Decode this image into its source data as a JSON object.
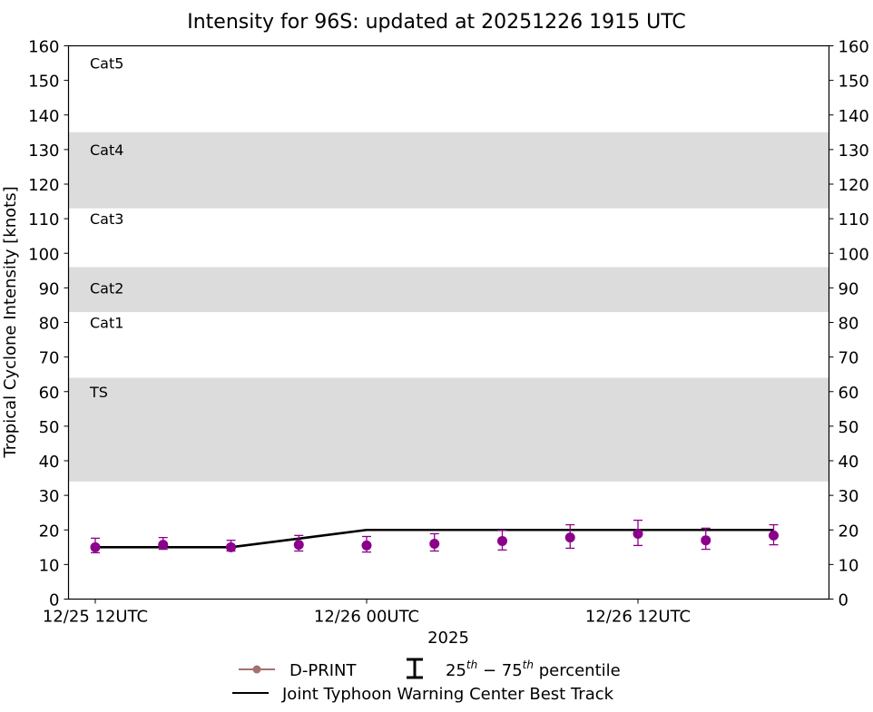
{
  "chart_data": {
    "type": "line",
    "title": "Intensity for 96S: updated at 20251226 1915 UTC",
    "xlabel": "2025",
    "ylabel": "Tropical Cyclone Intensity [knots]",
    "ylim": [
      0,
      160
    ],
    "yticks": [
      0,
      10,
      20,
      30,
      40,
      50,
      60,
      70,
      80,
      90,
      100,
      110,
      120,
      130,
      140,
      150,
      160
    ],
    "xticks": [
      {
        "label": "12/25 12UTC",
        "hour": 0
      },
      {
        "label": "12/26 00UTC",
        "hour": 12
      },
      {
        "label": "12/26 12UTC",
        "hour": 24
      }
    ],
    "xlim_hours": [
      -1.2,
      32.4
    ],
    "grid": false,
    "category_bands": [
      {
        "label": "TS",
        "min": 34,
        "max": 64,
        "shaded": true,
        "label_y": 60
      },
      {
        "label": "Cat1",
        "min": 64,
        "max": 83,
        "shaded": false,
        "label_y": 80
      },
      {
        "label": "Cat2",
        "min": 83,
        "max": 96,
        "shaded": true,
        "label_y": 90
      },
      {
        "label": "Cat3",
        "min": 96,
        "max": 113,
        "shaded": false,
        "label_y": 110
      },
      {
        "label": "Cat4",
        "min": 113,
        "max": 135,
        "shaded": true,
        "label_y": 130
      },
      {
        "label": "Cat5",
        "min": 135,
        "max": 160,
        "shaded": false,
        "label_y": 155
      }
    ],
    "series": [
      {
        "name": "D-PRINT",
        "color": "#8b008b",
        "legend_color": "#a57070",
        "hours": [
          0,
          3,
          6,
          9,
          12,
          15,
          18,
          21,
          24,
          27,
          30
        ],
        "values": [
          15,
          15.7,
          15,
          15.7,
          15.5,
          16,
          16.8,
          17.8,
          18.9,
          17,
          18.4
        ],
        "p25": [
          13.4,
          14.4,
          13.9,
          13.9,
          13.6,
          13.9,
          14.2,
          14.7,
          15.5,
          14.4,
          15.7
        ],
        "p75": [
          17.6,
          17.8,
          17,
          18.4,
          18.1,
          18.9,
          19.9,
          21.5,
          22.8,
          20.5,
          21.5
        ]
      },
      {
        "name": "Joint Typhoon Warning Center Best Track",
        "color": "#000000",
        "hours": [
          0,
          3,
          6,
          9,
          12,
          15,
          18,
          21,
          24,
          27,
          30
        ],
        "values": [
          15,
          15,
          15,
          17.5,
          20,
          20,
          20,
          20,
          20,
          20,
          20
        ]
      }
    ],
    "legend": {
      "position": "bottom-center",
      "entries": [
        {
          "label": "D-PRINT",
          "type": "line-marker"
        },
        {
          "label_base": "25",
          "sup1": "th",
          "dash": " − ",
          "label_base2": "75",
          "sup2": "th",
          "suffix": " percentile",
          "type": "errorbar"
        },
        {
          "label": "Joint Typhoon Warning Center Best Track",
          "type": "line"
        }
      ]
    }
  }
}
